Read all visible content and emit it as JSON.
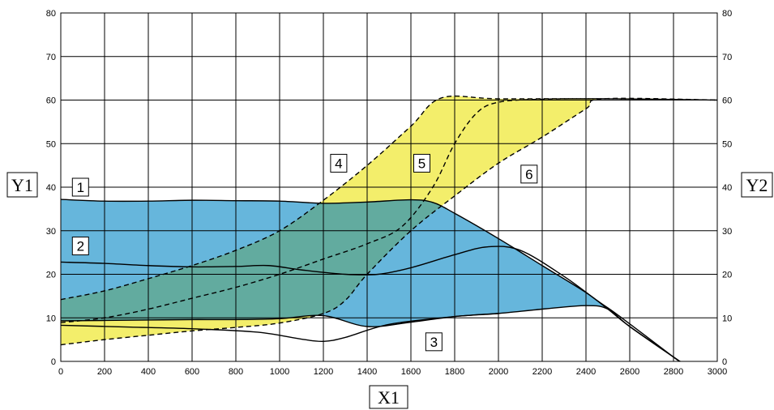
{
  "chart_data": {
    "type": "area",
    "xlabel": "X1",
    "ylabel_left": "Y1",
    "ylabel_right": "Y2",
    "xlim": [
      0,
      3000
    ],
    "ylim": [
      0,
      80
    ],
    "x_ticks": [
      0,
      200,
      400,
      600,
      800,
      1000,
      1200,
      1400,
      1600,
      1800,
      2000,
      2200,
      2400,
      2600,
      2800,
      3000
    ],
    "y_ticks": [
      0,
      10,
      20,
      30,
      40,
      50,
      60,
      70,
      80
    ],
    "grid": true,
    "colors": {
      "blue_region": "#66b6dc",
      "yellow_region": "#f3ee6b",
      "overlap_region": "#62ab9f",
      "line": "#000000"
    },
    "regions": [
      {
        "name": "blue",
        "upper_curve": "1",
        "lower_curve": "3"
      },
      {
        "name": "yellow",
        "upper_curve": "4",
        "lower_curve": "6"
      }
    ],
    "curves": [
      {
        "id": "1",
        "style": "solid",
        "points": [
          [
            0,
            37.2
          ],
          [
            200,
            36.8
          ],
          [
            400,
            36.8
          ],
          [
            600,
            37
          ],
          [
            800,
            36.9
          ],
          [
            1000,
            36.8
          ],
          [
            1200,
            36.3
          ],
          [
            1400,
            36.6
          ],
          [
            1600,
            37.1
          ],
          [
            1700,
            36.5
          ],
          [
            1800,
            34
          ],
          [
            2000,
            28.2
          ],
          [
            2200,
            22
          ],
          [
            2400,
            15.8
          ],
          [
            2500,
            12
          ],
          [
            2600,
            8
          ],
          [
            2800,
            1
          ],
          [
            2830,
            0
          ]
        ]
      },
      {
        "id": "2",
        "style": "solid",
        "points": [
          [
            0,
            22.8
          ],
          [
            200,
            22.5
          ],
          [
            400,
            22
          ],
          [
            600,
            21.7
          ],
          [
            800,
            21.8
          ],
          [
            950,
            22
          ],
          [
            1100,
            21
          ],
          [
            1300,
            20
          ],
          [
            1450,
            20
          ],
          [
            1600,
            21.5
          ],
          [
            1800,
            24.5
          ],
          [
            1950,
            26.3
          ],
          [
            2100,
            25.5
          ],
          [
            2300,
            19.5
          ],
          [
            2450,
            14
          ],
          [
            2550,
            10.5
          ],
          [
            2800,
            1
          ],
          [
            2830,
            0
          ]
        ]
      },
      {
        "id": "3",
        "style": "solid",
        "points": [
          [
            0,
            9.3
          ],
          [
            200,
            9.4
          ],
          [
            400,
            9.5
          ],
          [
            600,
            9.6
          ],
          [
            800,
            9.6
          ],
          [
            1000,
            9.8
          ],
          [
            1200,
            10.5
          ],
          [
            1400,
            8
          ],
          [
            1600,
            9
          ],
          [
            1800,
            10.3
          ],
          [
            2000,
            11
          ],
          [
            2200,
            12
          ],
          [
            2400,
            12.8
          ],
          [
            2500,
            12
          ],
          [
            2600,
            8
          ],
          [
            2800,
            1
          ],
          [
            2830,
            0
          ]
        ]
      },
      {
        "id": "4",
        "style": "dashed",
        "points": [
          [
            0,
            14.2
          ],
          [
            200,
            16.2
          ],
          [
            400,
            19
          ],
          [
            600,
            22
          ],
          [
            800,
            25.5
          ],
          [
            1000,
            30
          ],
          [
            1200,
            37
          ],
          [
            1400,
            45
          ],
          [
            1600,
            54
          ],
          [
            1740,
            60.5
          ],
          [
            2000,
            60.3
          ],
          [
            2500,
            60.3
          ],
          [
            3000,
            60
          ]
        ]
      },
      {
        "id": "5",
        "style": "dashed",
        "points": [
          [
            0,
            8.9
          ],
          [
            200,
            10
          ],
          [
            400,
            12
          ],
          [
            600,
            14.5
          ],
          [
            800,
            17
          ],
          [
            1000,
            20
          ],
          [
            1200,
            23.5
          ],
          [
            1400,
            27
          ],
          [
            1560,
            31
          ],
          [
            1700,
            40
          ],
          [
            1800,
            50
          ],
          [
            1900,
            57
          ],
          [
            2000,
            59.5
          ],
          [
            2200,
            60.2
          ],
          [
            2500,
            60.3
          ],
          [
            3000,
            60
          ]
        ]
      },
      {
        "id": "6",
        "style": "dashed",
        "points": [
          [
            0,
            3.8
          ],
          [
            200,
            5
          ],
          [
            400,
            6
          ],
          [
            600,
            7
          ],
          [
            800,
            7.8
          ],
          [
            1000,
            8.8
          ],
          [
            1200,
            11
          ],
          [
            1300,
            14
          ],
          [
            1400,
            20
          ],
          [
            1600,
            30
          ],
          [
            1800,
            38
          ],
          [
            2000,
            45.5
          ],
          [
            2200,
            51.5
          ],
          [
            2400,
            58
          ],
          [
            2480,
            60.3
          ],
          [
            3000,
            60
          ]
        ]
      },
      {
        "id": "7",
        "style": "solid",
        "points": [
          [
            0,
            8.3
          ],
          [
            300,
            7.9
          ],
          [
            600,
            7.5
          ],
          [
            900,
            6.7
          ],
          [
            1100,
            5.1
          ],
          [
            1200,
            4.6
          ],
          [
            1300,
            5.5
          ],
          [
            1500,
            8.5
          ],
          [
            1800,
            10.3
          ],
          [
            2000,
            11
          ]
        ]
      }
    ],
    "annotations": [
      {
        "text": "1",
        "x": 90,
        "y": 40
      },
      {
        "text": "2",
        "x": 90,
        "y": 26.5
      },
      {
        "text": "3",
        "x": 1705,
        "y": 4.5
      },
      {
        "text": "4",
        "x": 1270,
        "y": 45.5
      },
      {
        "text": "5",
        "x": 1650,
        "y": 45.5
      },
      {
        "text": "6",
        "x": 2140,
        "y": 43
      }
    ]
  }
}
